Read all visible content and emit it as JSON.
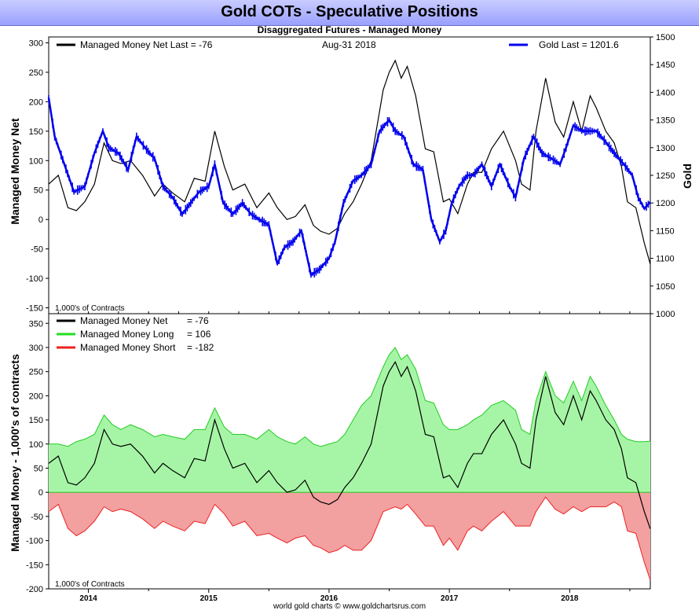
{
  "title": "Gold COTs - Speculative Positions",
  "subtitle": "Disaggregated Futures - Managed Money",
  "footer": "world gold charts © www.goldchartsrus.com",
  "chart_data": [
    {
      "type": "line",
      "legend": {
        "net_label": "Managed Money Net   Last = -76",
        "date_label": "Aug-31  2018",
        "gold_label": "Gold Last = 1201.6"
      },
      "ylabel_left": "Managed Money Net",
      "ylabel_right": "Gold",
      "unit_note": "1,000's of Contracts",
      "ylim_left": [
        -160,
        310
      ],
      "ylim_right": [
        1000,
        1500
      ],
      "yticks_left": [
        300,
        250,
        200,
        150,
        100,
        50,
        0,
        -50,
        -100,
        -150
      ],
      "yticks_right": [
        1500,
        1450,
        1400,
        1350,
        1300,
        1250,
        1200,
        1150,
        1100,
        1050,
        1000
      ],
      "x_range": [
        2013.67,
        2018.67
      ],
      "colors": {
        "net": "#000000",
        "gold": "#0000ee"
      },
      "series": [
        {
          "name": "Managed Money Net",
          "x": [
            2013.67,
            2013.75,
            2013.83,
            2013.9,
            2013.97,
            2014.05,
            2014.13,
            2014.2,
            2014.27,
            2014.35,
            2014.45,
            2014.55,
            2014.62,
            2014.7,
            2014.8,
            2014.88,
            2014.97,
            2015.05,
            2015.13,
            2015.2,
            2015.3,
            2015.4,
            2015.5,
            2015.57,
            2015.65,
            2015.72,
            2015.8,
            2015.87,
            2015.93,
            2016.0,
            2016.07,
            2016.13,
            2016.2,
            2016.27,
            2016.35,
            2016.45,
            2016.5,
            2016.55,
            2016.6,
            2016.65,
            2016.72,
            2016.8,
            2016.87,
            2016.95,
            2017.0,
            2017.07,
            2017.15,
            2017.2,
            2017.27,
            2017.35,
            2017.45,
            2017.55,
            2017.6,
            2017.67,
            2017.72,
            2017.8,
            2017.88,
            2017.95,
            2018.03,
            2018.1,
            2018.17,
            2018.22,
            2018.3,
            2018.37,
            2018.43,
            2018.48,
            2018.55,
            2018.62,
            2018.67
          ],
          "y": [
            60,
            75,
            20,
            15,
            30,
            60,
            130,
            100,
            95,
            100,
            75,
            40,
            60,
            45,
            30,
            70,
            65,
            150,
            90,
            50,
            60,
            20,
            45,
            20,
            0,
            5,
            25,
            -10,
            -20,
            -25,
            -15,
            10,
            30,
            60,
            100,
            220,
            250,
            270,
            240,
            260,
            210,
            120,
            115,
            30,
            35,
            10,
            60,
            80,
            80,
            120,
            150,
            100,
            60,
            50,
            150,
            240,
            165,
            140,
            200,
            150,
            210,
            190,
            150,
            130,
            90,
            30,
            20,
            -40,
            -76
          ]
        },
        {
          "name": "Gold",
          "x": [
            2013.67,
            2013.72,
            2013.8,
            2013.88,
            2013.97,
            2014.05,
            2014.12,
            2014.17,
            2014.25,
            2014.33,
            2014.4,
            2014.47,
            2014.55,
            2014.62,
            2014.7,
            2014.78,
            2014.85,
            2014.92,
            2015.0,
            2015.05,
            2015.12,
            2015.2,
            2015.28,
            2015.35,
            2015.42,
            2015.5,
            2015.57,
            2015.63,
            2015.7,
            2015.77,
            2015.85,
            2015.92,
            2016.0,
            2016.05,
            2016.12,
            2016.2,
            2016.27,
            2016.35,
            2016.42,
            2016.5,
            2016.55,
            2016.62,
            2016.7,
            2016.78,
            2016.85,
            2016.92,
            2016.97,
            2017.02,
            2017.08,
            2017.15,
            2017.2,
            2017.27,
            2017.35,
            2017.42,
            2017.5,
            2017.55,
            2017.62,
            2017.7,
            2017.77,
            2017.85,
            2017.92,
            2017.97,
            2018.03,
            2018.1,
            2018.17,
            2018.22,
            2018.3,
            2018.37,
            2018.45,
            2018.52,
            2018.57,
            2018.62,
            2018.67
          ],
          "y": [
            1390,
            1320,
            1270,
            1220,
            1230,
            1290,
            1330,
            1300,
            1290,
            1260,
            1320,
            1300,
            1280,
            1230,
            1210,
            1180,
            1200,
            1220,
            1230,
            1270,
            1200,
            1180,
            1200,
            1180,
            1170,
            1160,
            1090,
            1120,
            1130,
            1150,
            1070,
            1080,
            1100,
            1130,
            1200,
            1240,
            1250,
            1270,
            1330,
            1350,
            1330,
            1320,
            1270,
            1260,
            1170,
            1130,
            1150,
            1200,
            1230,
            1250,
            1250,
            1270,
            1230,
            1270,
            1230,
            1210,
            1280,
            1320,
            1290,
            1280,
            1270,
            1300,
            1340,
            1330,
            1330,
            1330,
            1310,
            1290,
            1270,
            1250,
            1210,
            1190,
            1201.6
          ]
        }
      ]
    },
    {
      "type": "area",
      "legend": {
        "net_label": "Managed Money Net",
        "net_value": "= -76",
        "long_label": "Managed Money Long",
        "long_value": "= 106",
        "short_label": "Managed Money Short",
        "short_value": "= -182"
      },
      "ylabel": "Managed Money - 1,000's of contracts",
      "unit_note": "1,000's of Contracts",
      "ylim": [
        -200,
        370
      ],
      "yticks": [
        350,
        300,
        250,
        200,
        150,
        100,
        50,
        0,
        -50,
        -100,
        -150,
        -200
      ],
      "x_range": [
        2013.67,
        2018.67
      ],
      "xticks": [
        "2014",
        "2015",
        "2016",
        "2017",
        "2018"
      ],
      "colors": {
        "net": "#000000",
        "long_fill": "#a6f5a6",
        "long_line": "#22cc22",
        "short_fill": "#f2a0a0",
        "short_line": "#ee2222"
      },
      "series": [
        {
          "name": "Managed Money Long",
          "x": [
            2013.67,
            2013.75,
            2013.83,
            2013.9,
            2013.97,
            2014.05,
            2014.13,
            2014.2,
            2014.27,
            2014.35,
            2014.45,
            2014.55,
            2014.62,
            2014.7,
            2014.8,
            2014.88,
            2014.97,
            2015.05,
            2015.13,
            2015.2,
            2015.3,
            2015.4,
            2015.5,
            2015.57,
            2015.65,
            2015.72,
            2015.8,
            2015.87,
            2015.93,
            2016.0,
            2016.07,
            2016.13,
            2016.2,
            2016.27,
            2016.35,
            2016.45,
            2016.5,
            2016.55,
            2016.6,
            2016.65,
            2016.72,
            2016.8,
            2016.87,
            2016.95,
            2017.0,
            2017.07,
            2017.15,
            2017.2,
            2017.27,
            2017.35,
            2017.45,
            2017.55,
            2017.6,
            2017.67,
            2017.72,
            2017.8,
            2017.88,
            2017.95,
            2018.03,
            2018.1,
            2018.17,
            2018.22,
            2018.3,
            2018.37,
            2018.43,
            2018.48,
            2018.55,
            2018.62,
            2018.67
          ],
          "y": [
            100,
            100,
            95,
            105,
            110,
            120,
            160,
            140,
            130,
            140,
            130,
            115,
            120,
            115,
            110,
            130,
            130,
            175,
            135,
            120,
            120,
            110,
            130,
            115,
            105,
            100,
            115,
            100,
            95,
            100,
            105,
            120,
            150,
            180,
            200,
            260,
            285,
            300,
            275,
            285,
            255,
            190,
            185,
            140,
            130,
            130,
            140,
            150,
            160,
            180,
            190,
            170,
            130,
            120,
            190,
            250,
            200,
            185,
            230,
            190,
            240,
            220,
            180,
            150,
            120,
            110,
            105,
            105,
            106
          ]
        },
        {
          "name": "Managed Money Short",
          "x": [
            2013.67,
            2013.75,
            2013.83,
            2013.9,
            2013.97,
            2014.05,
            2014.13,
            2014.2,
            2014.27,
            2014.35,
            2014.45,
            2014.55,
            2014.62,
            2014.7,
            2014.8,
            2014.88,
            2014.97,
            2015.05,
            2015.13,
            2015.2,
            2015.3,
            2015.4,
            2015.5,
            2015.57,
            2015.65,
            2015.72,
            2015.8,
            2015.87,
            2015.93,
            2016.0,
            2016.07,
            2016.13,
            2016.2,
            2016.27,
            2016.35,
            2016.45,
            2016.5,
            2016.55,
            2016.6,
            2016.65,
            2016.72,
            2016.8,
            2016.87,
            2016.95,
            2017.0,
            2017.07,
            2017.15,
            2017.2,
            2017.27,
            2017.35,
            2017.45,
            2017.55,
            2017.6,
            2017.67,
            2017.72,
            2017.8,
            2017.88,
            2017.95,
            2018.03,
            2018.1,
            2018.17,
            2018.22,
            2018.3,
            2018.37,
            2018.43,
            2018.48,
            2018.55,
            2018.62,
            2018.67
          ],
          "y": [
            -40,
            -25,
            -75,
            -90,
            -80,
            -60,
            -30,
            -40,
            -35,
            -40,
            -55,
            -75,
            -60,
            -70,
            -80,
            -60,
            -65,
            -25,
            -45,
            -70,
            -60,
            -90,
            -85,
            -95,
            -105,
            -95,
            -90,
            -110,
            -115,
            -125,
            -120,
            -110,
            -120,
            -120,
            -100,
            -40,
            -35,
            -30,
            -35,
            -25,
            -45,
            -70,
            -70,
            -110,
            -95,
            -120,
            -80,
            -70,
            -80,
            -60,
            -40,
            -70,
            -70,
            -70,
            -40,
            -10,
            -35,
            -45,
            -30,
            -40,
            -30,
            -30,
            -30,
            -20,
            -30,
            -80,
            -85,
            -145,
            -182
          ]
        },
        {
          "name": "Managed Money Net",
          "x": [
            2013.67,
            2013.75,
            2013.83,
            2013.9,
            2013.97,
            2014.05,
            2014.13,
            2014.2,
            2014.27,
            2014.35,
            2014.45,
            2014.55,
            2014.62,
            2014.7,
            2014.8,
            2014.88,
            2014.97,
            2015.05,
            2015.13,
            2015.2,
            2015.3,
            2015.4,
            2015.5,
            2015.57,
            2015.65,
            2015.72,
            2015.8,
            2015.87,
            2015.93,
            2016.0,
            2016.07,
            2016.13,
            2016.2,
            2016.27,
            2016.35,
            2016.45,
            2016.5,
            2016.55,
            2016.6,
            2016.65,
            2016.72,
            2016.8,
            2016.87,
            2016.95,
            2017.0,
            2017.07,
            2017.15,
            2017.2,
            2017.27,
            2017.35,
            2017.45,
            2017.55,
            2017.6,
            2017.67,
            2017.72,
            2017.8,
            2017.88,
            2017.95,
            2018.03,
            2018.1,
            2018.17,
            2018.22,
            2018.3,
            2018.37,
            2018.43,
            2018.48,
            2018.55,
            2018.62,
            2018.67
          ],
          "y": [
            60,
            75,
            20,
            15,
            30,
            60,
            130,
            100,
            95,
            100,
            75,
            40,
            60,
            45,
            30,
            70,
            65,
            150,
            90,
            50,
            60,
            20,
            45,
            20,
            0,
            5,
            25,
            -10,
            -20,
            -25,
            -15,
            10,
            30,
            60,
            100,
            220,
            250,
            270,
            240,
            260,
            210,
            120,
            115,
            30,
            35,
            10,
            60,
            80,
            80,
            120,
            150,
            100,
            60,
            50,
            150,
            240,
            165,
            140,
            200,
            150,
            210,
            190,
            150,
            130,
            90,
            30,
            20,
            -40,
            -76
          ]
        }
      ]
    }
  ]
}
